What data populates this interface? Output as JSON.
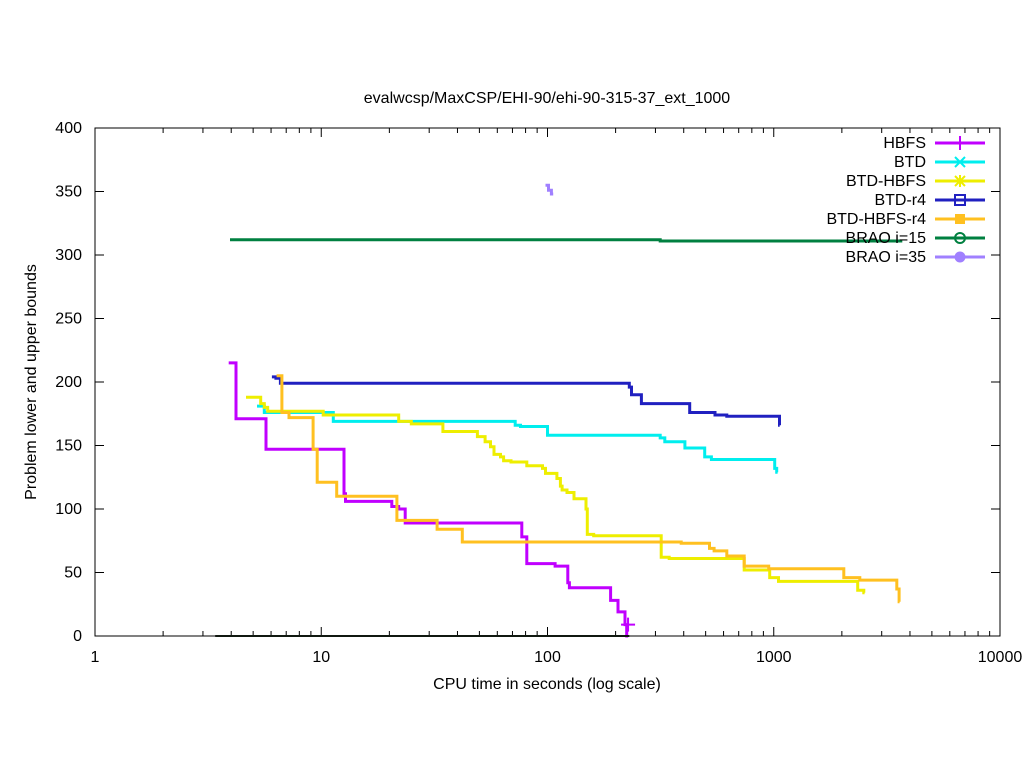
{
  "chart_data": {
    "type": "line",
    "title": "evalwcsp/MaxCSP/EHI-90/ehi-90-315-37_ext_1000",
    "xlabel": "CPU time in seconds (log scale)",
    "ylabel": "Problem lower and upper bounds",
    "xscale": "log",
    "xlim": [
      1,
      10000
    ],
    "ylim": [
      0,
      400
    ],
    "xticks": [
      1,
      10,
      100,
      1000,
      10000
    ],
    "xtick_labels": [
      "1",
      "10",
      "100",
      "1000",
      "10000"
    ],
    "yticks": [
      0,
      50,
      100,
      150,
      200,
      250,
      300,
      350,
      400
    ],
    "ytick_labels": [
      "0",
      "50",
      "100",
      "150",
      "200",
      "250",
      "300",
      "350",
      "400"
    ],
    "grid": false,
    "legend_position": "top-right",
    "series": [
      {
        "name": "HBFS",
        "color": "#c000ff",
        "marker": "plus",
        "points": [
          [
            3.9,
            215
          ],
          [
            4.2,
            171
          ],
          [
            5.7,
            147
          ],
          [
            12.6,
            112
          ],
          [
            12.8,
            106
          ],
          [
            20.5,
            102
          ],
          [
            22,
            100
          ],
          [
            23.5,
            89
          ],
          [
            77,
            78
          ],
          [
            81,
            57
          ],
          [
            108,
            55
          ],
          [
            123,
            42
          ],
          [
            125,
            38
          ],
          [
            190,
            28
          ],
          [
            205,
            19
          ],
          [
            220,
            9
          ],
          [
            224,
            0
          ]
        ],
        "end": 227,
        "marker_at": [
          227,
          9
        ]
      },
      {
        "name": "BTD",
        "color": "#00eeee",
        "marker": "cross",
        "points": [
          [
            5.2,
            181
          ],
          [
            5.6,
            176
          ],
          [
            11.3,
            169
          ],
          [
            72,
            166
          ],
          [
            76,
            165
          ],
          [
            100,
            158
          ],
          [
            315,
            156
          ],
          [
            330,
            153
          ],
          [
            405,
            148
          ],
          [
            495,
            141
          ],
          [
            530,
            139
          ],
          [
            1010,
            132
          ],
          [
            1030,
            129
          ]
        ],
        "end": 1040
      },
      {
        "name": "BTD-HBFS",
        "color": "#eeee00",
        "marker": "asterisk",
        "points": [
          [
            4.65,
            188
          ],
          [
            5.4,
            183
          ],
          [
            5.6,
            180
          ],
          [
            5.8,
            177
          ],
          [
            10.2,
            174
          ],
          [
            22,
            169
          ],
          [
            25,
            167
          ],
          [
            34.5,
            161
          ],
          [
            49,
            157
          ],
          [
            53,
            153
          ],
          [
            56,
            149
          ],
          [
            58,
            143
          ],
          [
            62,
            141
          ],
          [
            64,
            138
          ],
          [
            69,
            137
          ],
          [
            81,
            134
          ],
          [
            95,
            132
          ],
          [
            98,
            128
          ],
          [
            110,
            124
          ],
          [
            114,
            118
          ],
          [
            116,
            115
          ],
          [
            122,
            113
          ],
          [
            131,
            108
          ],
          [
            148,
            100
          ],
          [
            150,
            80
          ],
          [
            160,
            79
          ],
          [
            318,
            62
          ],
          [
            345,
            61
          ],
          [
            740,
            52
          ],
          [
            960,
            46
          ],
          [
            1050,
            43
          ],
          [
            2350,
            36
          ],
          [
            2500,
            34
          ]
        ],
        "end": 2520
      },
      {
        "name": "BTD-r4",
        "color": "#2020c0",
        "marker": "square-open",
        "points": [
          [
            6.05,
            204
          ],
          [
            6.3,
            203
          ],
          [
            6.6,
            199
          ],
          [
            230,
            196
          ],
          [
            235,
            190
          ],
          [
            260,
            183
          ],
          [
            425,
            176
          ],
          [
            550,
            174
          ],
          [
            620,
            173
          ],
          [
            1060,
            166
          ]
        ],
        "end": 1062
      },
      {
        "name": "BTD-HBFS-r4",
        "color": "#ffc020",
        "marker": "square-filled",
        "points": [
          [
            6.35,
            205
          ],
          [
            6.7,
            176
          ],
          [
            7.2,
            172
          ],
          [
            9.2,
            147
          ],
          [
            9.6,
            121
          ],
          [
            11.7,
            110
          ],
          [
            21.6,
            91
          ],
          [
            32.5,
            84
          ],
          [
            42,
            74
          ],
          [
            390,
            73
          ],
          [
            520,
            69
          ],
          [
            545,
            67
          ],
          [
            620,
            63
          ],
          [
            740,
            55
          ],
          [
            950,
            53
          ],
          [
            2040,
            46
          ],
          [
            2400,
            44
          ],
          [
            3500,
            37
          ],
          [
            3580,
            27
          ]
        ],
        "end": 3600
      },
      {
        "name": "BRAO i=15",
        "color": "#008040",
        "marker": "circle-open",
        "points": [
          [
            3.95,
            312
          ],
          [
            315,
            311
          ]
        ],
        "end": 3700,
        "lower_bound": {
          "points": [
            [
              3.4,
              0
            ]
          ],
          "end": 230,
          "color": "#203020"
        }
      },
      {
        "name": "BRAO i=35",
        "color": "#a080ff",
        "marker": "circle-filled",
        "points": [
          [
            98,
            355
          ],
          [
            101,
            351
          ],
          [
            104,
            348
          ]
        ],
        "end": 106
      }
    ]
  }
}
